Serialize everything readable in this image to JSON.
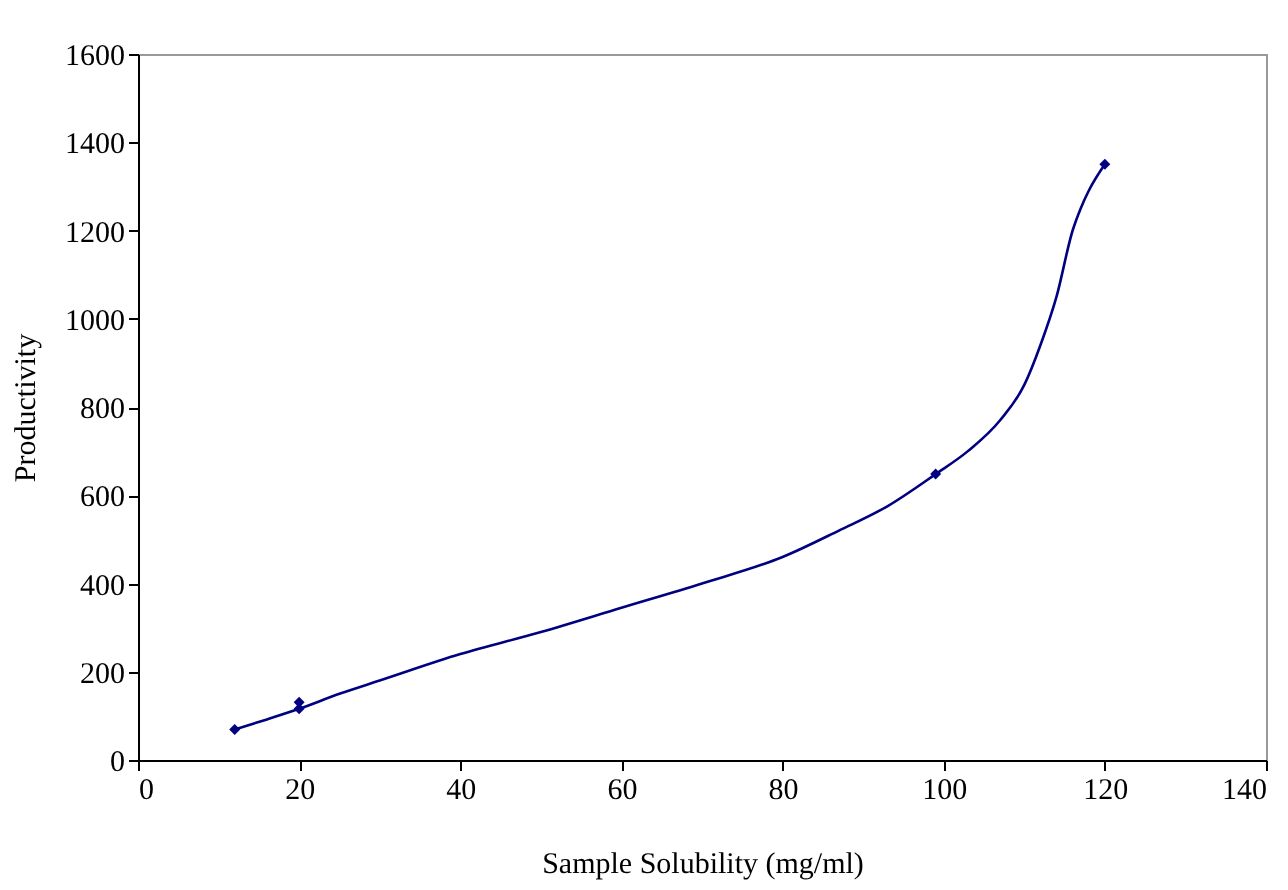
{
  "chart_data": {
    "type": "scatter",
    "xlabel": "Sample Solubility (mg/ml)",
    "ylabel": "Productivity",
    "xlim": [
      0,
      140
    ],
    "xticks": [
      0,
      20,
      40,
      60,
      80,
      100,
      120,
      140
    ],
    "ylim": [
      0,
      1600
    ],
    "yticks": [
      0,
      200,
      400,
      600,
      800,
      1000,
      1200,
      1400,
      1600
    ],
    "grid": false,
    "series": [
      {
        "marker": "diamond",
        "color": "#000080",
        "x": [
          12,
          20,
          20,
          99,
          120
        ],
        "values": [
          69,
          116,
          131,
          648,
          1350
        ]
      },
      {
        "type": "line",
        "marker": "none",
        "color": "#000080",
        "x": [
          12,
          16,
          20,
          25,
          30,
          40,
          50,
          60,
          70,
          80,
          87,
          93,
          99,
          103,
          107,
          110,
          112,
          114,
          116,
          117,
          118,
          120
        ],
        "values": [
          69,
          92,
          116,
          150,
          180,
          240,
          290,
          345,
          400,
          460,
          520,
          575,
          648,
          700,
          770,
          850,
          940,
          1050,
          1200,
          1250,
          1290,
          1350
        ]
      }
    ]
  }
}
